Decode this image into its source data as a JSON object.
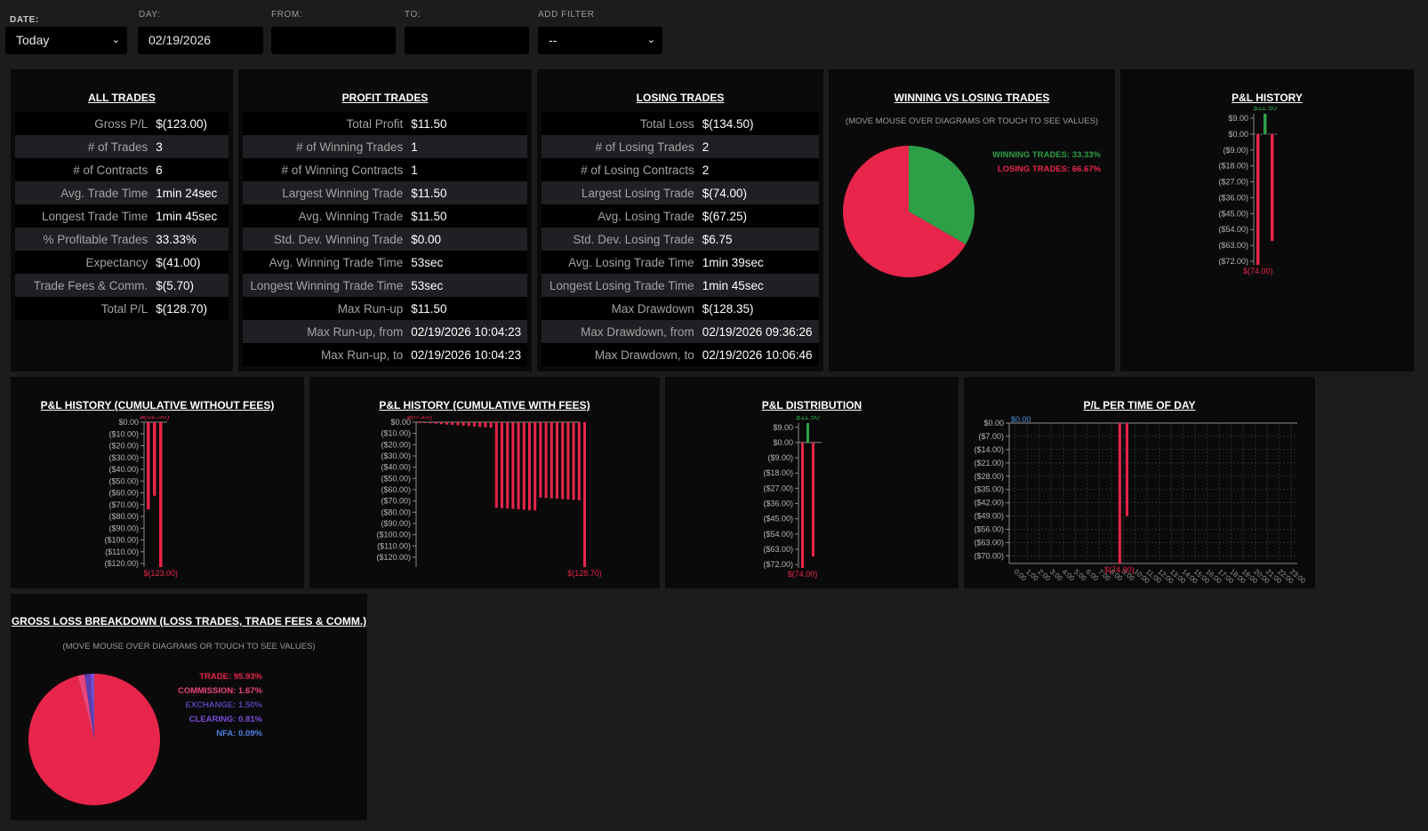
{
  "filters": {
    "date": {
      "label": "DATE:",
      "value": "Today"
    },
    "day": {
      "label": "DAY:",
      "value": "02/19/2026"
    },
    "from": {
      "label": "FROM:",
      "value": ""
    },
    "to": {
      "label": "TO:",
      "value": ""
    },
    "add_filter": {
      "label": "ADD FILTER",
      "value": "--"
    }
  },
  "all_trades": {
    "title": "ALL TRADES",
    "rows": [
      {
        "k": "Gross P/L",
        "v": "$(123.00)"
      },
      {
        "k": "# of Trades",
        "v": "3"
      },
      {
        "k": "# of Contracts",
        "v": "6"
      },
      {
        "k": "Avg. Trade Time",
        "v": "1min 24sec"
      },
      {
        "k": "Longest Trade Time",
        "v": "1min 45sec"
      },
      {
        "k": "% Profitable Trades",
        "v": "33.33%"
      },
      {
        "k": "Expectancy",
        "v": "$(41.00)"
      },
      {
        "k": "Trade Fees & Comm.",
        "v": "$(5.70)"
      },
      {
        "k": "Total P/L",
        "v": "$(128.70)"
      }
    ]
  },
  "profit_trades": {
    "title": "PROFIT TRADES",
    "rows": [
      {
        "k": "Total Profit",
        "v": "$11.50"
      },
      {
        "k": "# of Winning Trades",
        "v": "1"
      },
      {
        "k": "# of Winning Contracts",
        "v": "1"
      },
      {
        "k": "Largest Winning Trade",
        "v": "$11.50"
      },
      {
        "k": "Avg. Winning Trade",
        "v": "$11.50"
      },
      {
        "k": "Std. Dev. Winning Trade",
        "v": "$0.00"
      },
      {
        "k": "Avg. Winning Trade Time",
        "v": "53sec"
      },
      {
        "k": "Longest Winning Trade Time",
        "v": "53sec"
      },
      {
        "k": "Max Run-up",
        "v": "$11.50"
      },
      {
        "k": "Max Run-up, from",
        "v": "02/19/2026 10:04:23"
      },
      {
        "k": "Max Run-up, to",
        "v": "02/19/2026 10:04:23"
      }
    ]
  },
  "losing_trades": {
    "title": "LOSING TRADES",
    "rows": [
      {
        "k": "Total Loss",
        "v": "$(134.50)"
      },
      {
        "k": "# of Losing Trades",
        "v": "2"
      },
      {
        "k": "# of Losing Contracts",
        "v": "2"
      },
      {
        "k": "Largest Losing Trade",
        "v": "$(74.00)"
      },
      {
        "k": "Avg. Losing Trade",
        "v": "$(67.25)"
      },
      {
        "k": "Std. Dev. Losing Trade",
        "v": "$6.75"
      },
      {
        "k": "Avg. Losing Trade Time",
        "v": "1min 39sec"
      },
      {
        "k": "Longest Losing Trade Time",
        "v": "1min 45sec"
      },
      {
        "k": "Max Drawdown",
        "v": "$(128.35)"
      },
      {
        "k": "Max Drawdown, from",
        "v": "02/19/2026 09:36:26"
      },
      {
        "k": "Max Drawdown, to",
        "v": "02/19/2026 10:06:46"
      }
    ]
  },
  "hint": "(MOVE MOUSE OVER DIAGRAMS OR TOUCH TO SEE VALUES)",
  "colors": {
    "win": "#2e9e47",
    "loss": "#e8254a",
    "zero": "#4a90d9",
    "axis": "#8a8a8a"
  },
  "chart_data": [
    {
      "id": "win_loss",
      "type": "pie",
      "title": "WINNING VS LOSING TRADES",
      "slices": [
        {
          "name": "WINNING TRADES: 33.33%",
          "value": 33.33,
          "color": "#2e9e47"
        },
        {
          "name": "LOSING TRADES: 66.67%",
          "value": 66.67,
          "color": "#e8254a"
        }
      ]
    },
    {
      "id": "pl_history",
      "type": "bar",
      "title": "P&L HISTORY",
      "values": [
        -74.0,
        11.5,
        -60.5
      ],
      "ylim": [
        -74,
        11.5
      ],
      "yticks": [
        9,
        0,
        -9,
        -18,
        -27,
        -36,
        -45,
        -54,
        -63,
        -72
      ],
      "ytick_labels": [
        "$9.00",
        "$0.00",
        "($9.00)",
        "($18.00)",
        "($27.00)",
        "($36.00)",
        "($45.00)",
        "($54.00)",
        "($63.00)",
        "($72.00)"
      ],
      "max_label": "$11.50",
      "min_label": "$(74.00)"
    },
    {
      "id": "cum_no_fees",
      "type": "bar",
      "title": "P&L HISTORY (CUMULATIVE WITHOUT FEES)",
      "values": [
        -74.0,
        -62.5,
        -123.0
      ],
      "ylim": [
        -123,
        0
      ],
      "yticks": [
        0,
        -10,
        -20,
        -30,
        -40,
        -50,
        -60,
        -70,
        -80,
        -90,
        -100,
        -110,
        -120
      ],
      "ytick_labels": [
        "$0.00",
        "($10.00)",
        "($20.00)",
        "($30.00)",
        "($40.00)",
        "($50.00)",
        "($60.00)",
        "($70.00)",
        "($80.00)",
        "($90.00)",
        "($100.00)",
        "($110.00)",
        "($120.00)"
      ],
      "max_label": "$(62.50)",
      "min_label": "$(123.00)"
    },
    {
      "id": "cum_with_fees",
      "type": "bar",
      "title": "P&L HISTORY (CUMULATIVE WITH FEES)",
      "values": [
        -0.35,
        -0.7,
        -1.05,
        -1.4,
        -1.75,
        -2.1,
        -2.45,
        -2.8,
        -3.15,
        -3.5,
        -3.85,
        -4.2,
        -4.55,
        -4.9,
        -76.0,
        -76.35,
        -76.7,
        -77.05,
        -77.4,
        -77.75,
        -78.1,
        -78.45,
        -66.95,
        -67.3,
        -67.65,
        -68.0,
        -68.35,
        -68.7,
        -69.05,
        -69.4,
        -128.7
      ],
      "ylim": [
        -128.7,
        0
      ],
      "yticks": [
        0,
        -10,
        -20,
        -30,
        -40,
        -50,
        -60,
        -70,
        -80,
        -90,
        -100,
        -110,
        -120
      ],
      "ytick_labels": [
        "$0.00",
        "($10.00)",
        "($20.00)",
        "($30.00)",
        "($40.00)",
        "($50.00)",
        "($60.00)",
        "($70.00)",
        "($80.00)",
        "($90.00)",
        "($100.00)",
        "($110.00)",
        "($120.00)"
      ],
      "max_label": "$(0.35)",
      "min_label": "$(128.70)"
    },
    {
      "id": "distribution",
      "type": "bar",
      "title": "P&L DISTRIBUTION",
      "values": [
        -74.0,
        11.5,
        -67.25
      ],
      "ylim": [
        -74,
        11.5
      ],
      "yticks": [
        9,
        0,
        -9,
        -18,
        -27,
        -36,
        -45,
        -54,
        -63,
        -72
      ],
      "ytick_labels": [
        "$9.00",
        "$0.00",
        "($9.00)",
        "($18.00)",
        "($27.00)",
        "($36.00)",
        "($45.00)",
        "($54.00)",
        "($63.00)",
        "($72.00)"
      ],
      "max_label": "$11.50",
      "min_label": "$(74.00)"
    },
    {
      "id": "time_of_day",
      "type": "bar",
      "title": "P/L PER TIME OF DAY",
      "categories": [
        "0:00",
        "1:00",
        "2:00",
        "3:00",
        "4:00",
        "5:00",
        "6:00",
        "7:00",
        "8:00",
        "9:00",
        "10:00",
        "11:00",
        "12:00",
        "13:00",
        "14:00",
        "15:00",
        "16:00",
        "17:00",
        "18:00",
        "19:00",
        "20:00",
        "21:00",
        "22:00",
        "23:00"
      ],
      "bars": [
        {
          "hour": 9.1,
          "value": -74.0
        },
        {
          "hour": 9.7,
          "value": -49.0
        }
      ],
      "ylim": [
        -74,
        0
      ],
      "yticks": [
        0,
        -7,
        -14,
        -21,
        -28,
        -35,
        -42,
        -49,
        -56,
        -63,
        -70
      ],
      "ytick_labels": [
        "$0.00",
        "($7.00)",
        "($14.00)",
        "($21.00)",
        "($28.00)",
        "($35.00)",
        "($42.00)",
        "($49.00)",
        "($56.00)",
        "($63.00)",
        "($70.00)"
      ],
      "max_label": "$0.00",
      "min_label": "$(74.00)"
    },
    {
      "id": "gross_loss",
      "type": "pie",
      "title": "GROSS LOSS BREAKDOWN (LOSS TRADES, TRADE FEES & COMM.)",
      "slices": [
        {
          "name": "TRADE: 95.93%",
          "value": 95.93,
          "color": "#e8254a"
        },
        {
          "name": "COMMISSION: 1.67%",
          "value": 1.67,
          "color": "#e8457a"
        },
        {
          "name": "EXCHANGE: 1.50%",
          "value": 1.5,
          "color": "#5a3fb0"
        },
        {
          "name": "CLEARING: 0.81%",
          "value": 0.81,
          "color": "#7c4ddb"
        },
        {
          "name": "NFA: 0.09%",
          "value": 0.09,
          "color": "#4f7ee0"
        }
      ]
    }
  ]
}
